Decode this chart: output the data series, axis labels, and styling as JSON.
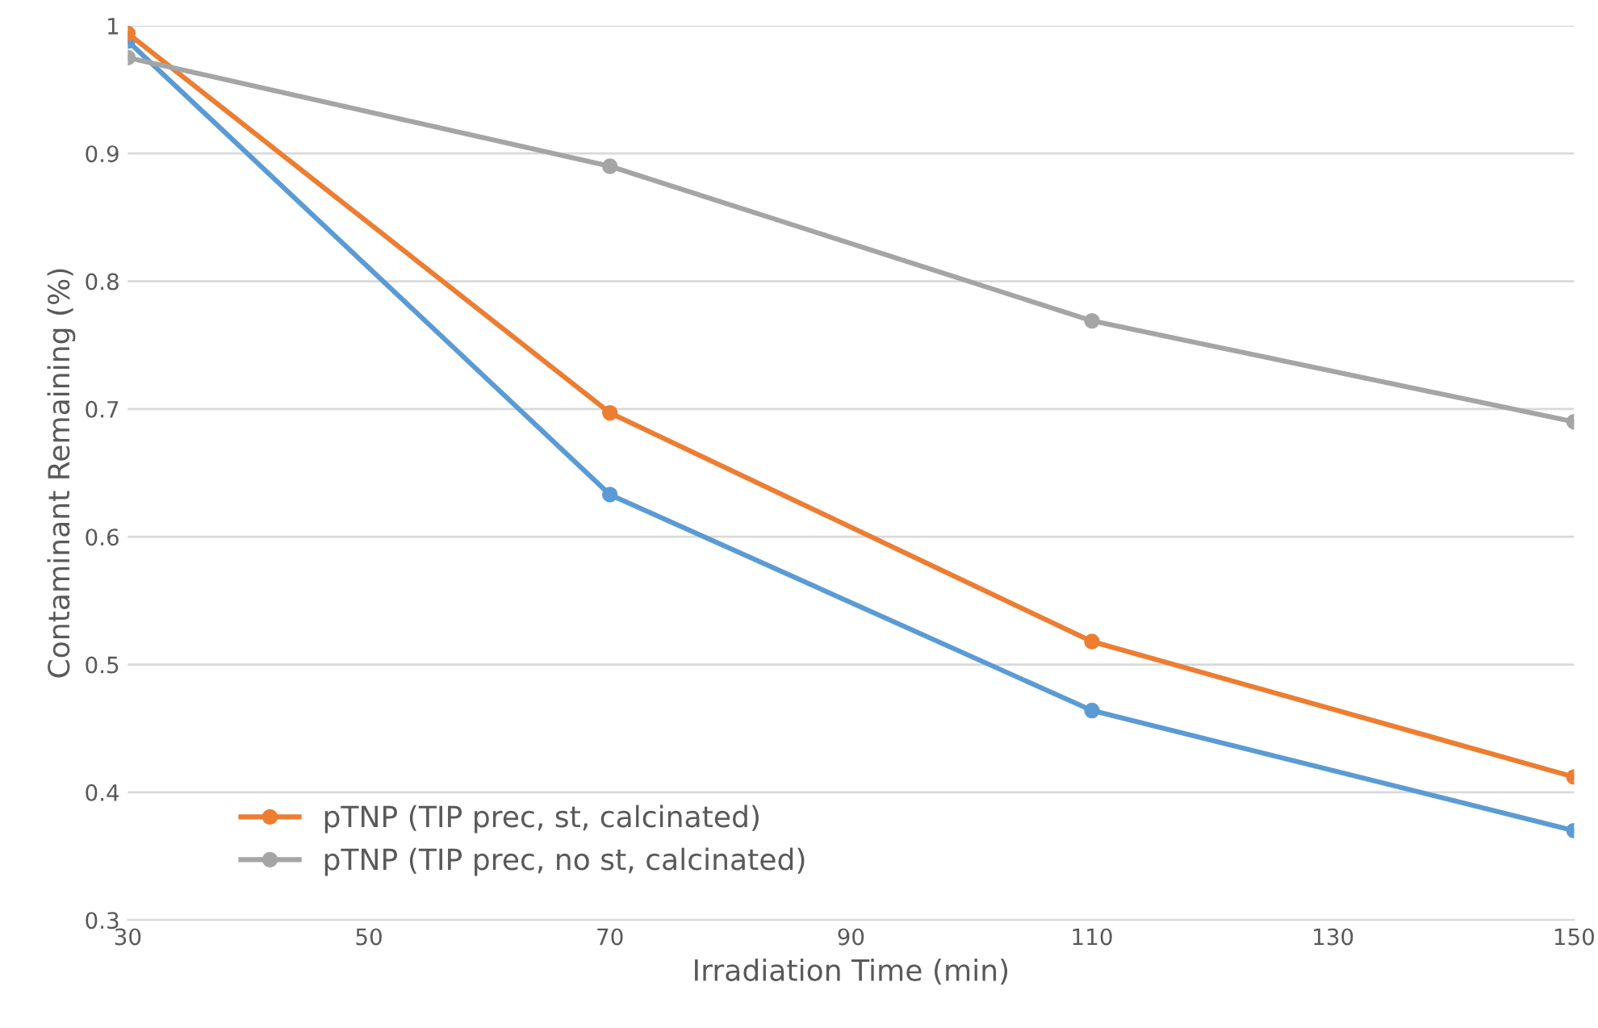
{
  "chart_data": {
    "type": "line",
    "xlabel": "Irradiation Time (min)",
    "ylabel": "Contaminant Remaining (%)",
    "x": [
      30,
      70,
      110,
      150
    ],
    "series": [
      {
        "color": "#5b9bd5",
        "values": [
          0.988,
          0.633,
          0.464,
          0.37
        ]
      },
      {
        "name": "pTNP (TIP prec, st, calcinated)",
        "color": "#ed7d31",
        "values": [
          0.994,
          0.697,
          0.518,
          0.412
        ]
      },
      {
        "name": "pTNP (TIP prec, no st, calcinated)",
        "color": "#a5a5a5",
        "values": [
          0.975,
          0.89,
          0.769,
          0.69
        ]
      }
    ],
    "xlim": [
      30,
      150
    ],
    "xticks": [
      30,
      50,
      70,
      90,
      110,
      130,
      150
    ],
    "ylim": [
      0.3,
      1
    ],
    "yticks": [
      0.3,
      0.4,
      0.5,
      0.6,
      0.7,
      0.8,
      0.9,
      1
    ],
    "grid": "y",
    "legend": "bottom left",
    "marker": "circle",
    "line_style": "solid"
  }
}
